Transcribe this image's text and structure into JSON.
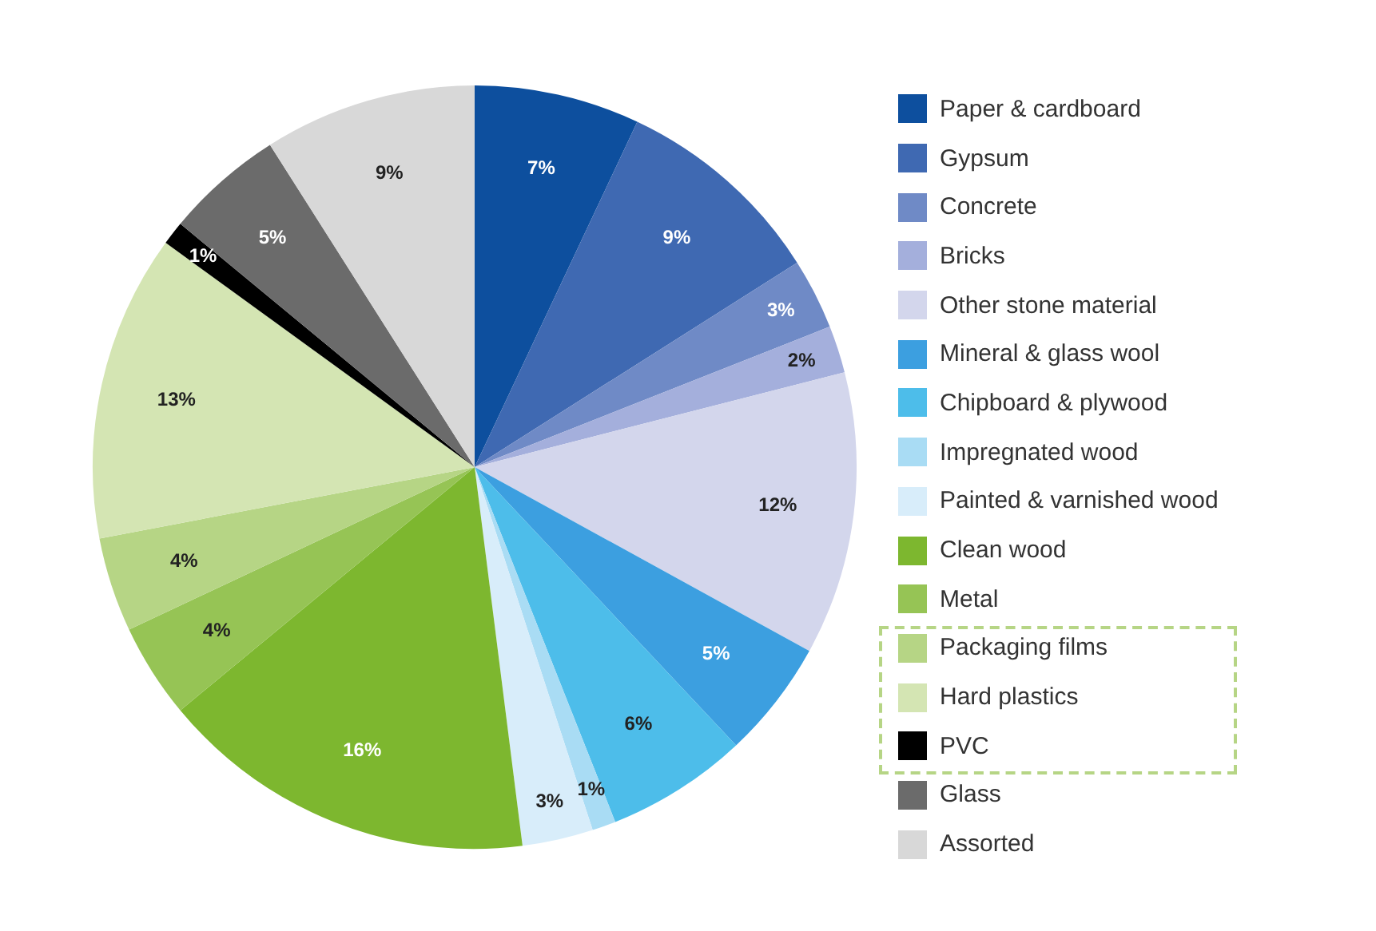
{
  "chart_data": {
    "type": "pie",
    "categories": [
      "Paper & cardboard",
      "Gypsum",
      "Concrete",
      "Bricks",
      "Other stone material",
      "Mineral & glass wool",
      "Chipboard & plywood",
      "Impregnated wood",
      "Painted & varnished wood",
      "Clean wood",
      "Metal",
      "Packaging films",
      "Hard plastics",
      "PVC",
      "Glass",
      "Assorted"
    ],
    "values": [
      7,
      9,
      3,
      2,
      12,
      5,
      6,
      1,
      3,
      16,
      4,
      4,
      13,
      1,
      5,
      9
    ],
    "colors": [
      "#0d4f9e",
      "#3f69b2",
      "#6f8ac6",
      "#a4afdc",
      "#d3d6ec",
      "#3c9fe0",
      "#4dbdea",
      "#a9dcf4",
      "#d8edfa",
      "#7db72f",
      "#96c455",
      "#b6d585",
      "#d4e5b3",
      "#000000",
      "#6b6b6b",
      "#d8d8d8"
    ],
    "value_labels": [
      "7%",
      "9%",
      "3%",
      "2%",
      "12%",
      "5%",
      "6%",
      "1%",
      "3%",
      "16%",
      "4%",
      "4%",
      "13%",
      "1%",
      "5%",
      "9%"
    ],
    "legend": "right"
  }
}
